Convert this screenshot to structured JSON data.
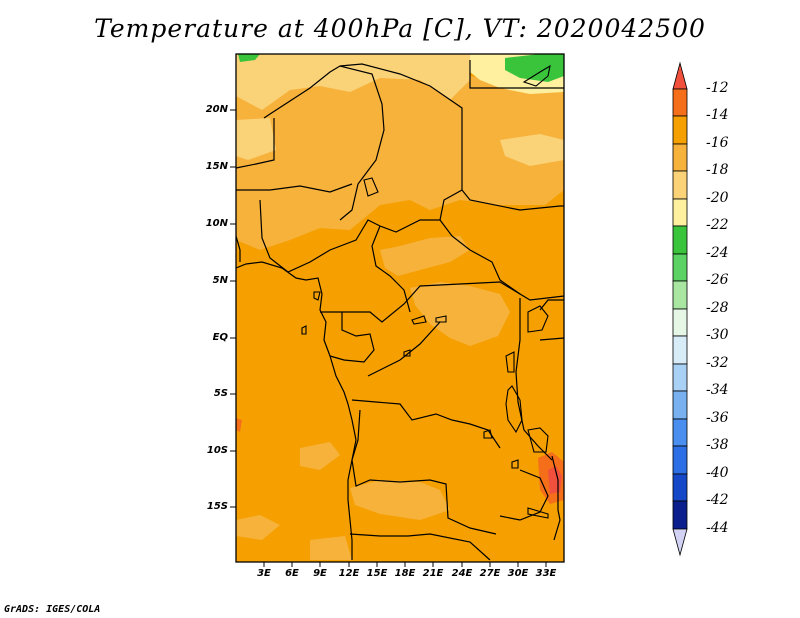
{
  "title": "Temperature at 400hPa [C], VT: 2020042500",
  "credit": "GrADS: IGES/COLA",
  "map": {
    "latitude_labels": [
      "20N",
      "15N",
      "10N",
      "5N",
      "EQ",
      "5S",
      "10S",
      "15S"
    ],
    "longitude_labels": [
      "3E",
      "6E",
      "9E",
      "12E",
      "15E",
      "18E",
      "21E",
      "24E",
      "27E",
      "30E",
      "33E"
    ]
  },
  "colorbar": {
    "labels": [
      "-12",
      "-14",
      "-16",
      "-18",
      "-20",
      "-22",
      "-24",
      "-26",
      "-28",
      "-30",
      "-32",
      "-34",
      "-36",
      "-38",
      "-40",
      "-42",
      "-44"
    ],
    "colors": {
      "warmest_triangle": "#f0503c",
      "-14_to_-12": "#f56e1a",
      "-16_to_-14": "#f5a000",
      "-18_to_-16": "#f7b23c",
      "-20_to_-18": "#fad278",
      "-22_to_-20": "#fff0a0",
      "-24_to_-22": "#39c43c",
      "-26_to_-24": "#5ad264",
      "-28_to_-26": "#a8e6a2",
      "-30_to_-28": "#e6f7e6",
      "-32_to_-30": "#d8ecf8",
      "-34_to_-32": "#a9d0f5",
      "-36_to_-34": "#78b0f0",
      "-38_to_-36": "#4a8ff0",
      "-40_to_-38": "#2c6ee6",
      "-42_to_-40": "#1448c8",
      "-44_to_-42": "#0a1e8c",
      "coldest_triangle": "#d2d2f5"
    }
  }
}
